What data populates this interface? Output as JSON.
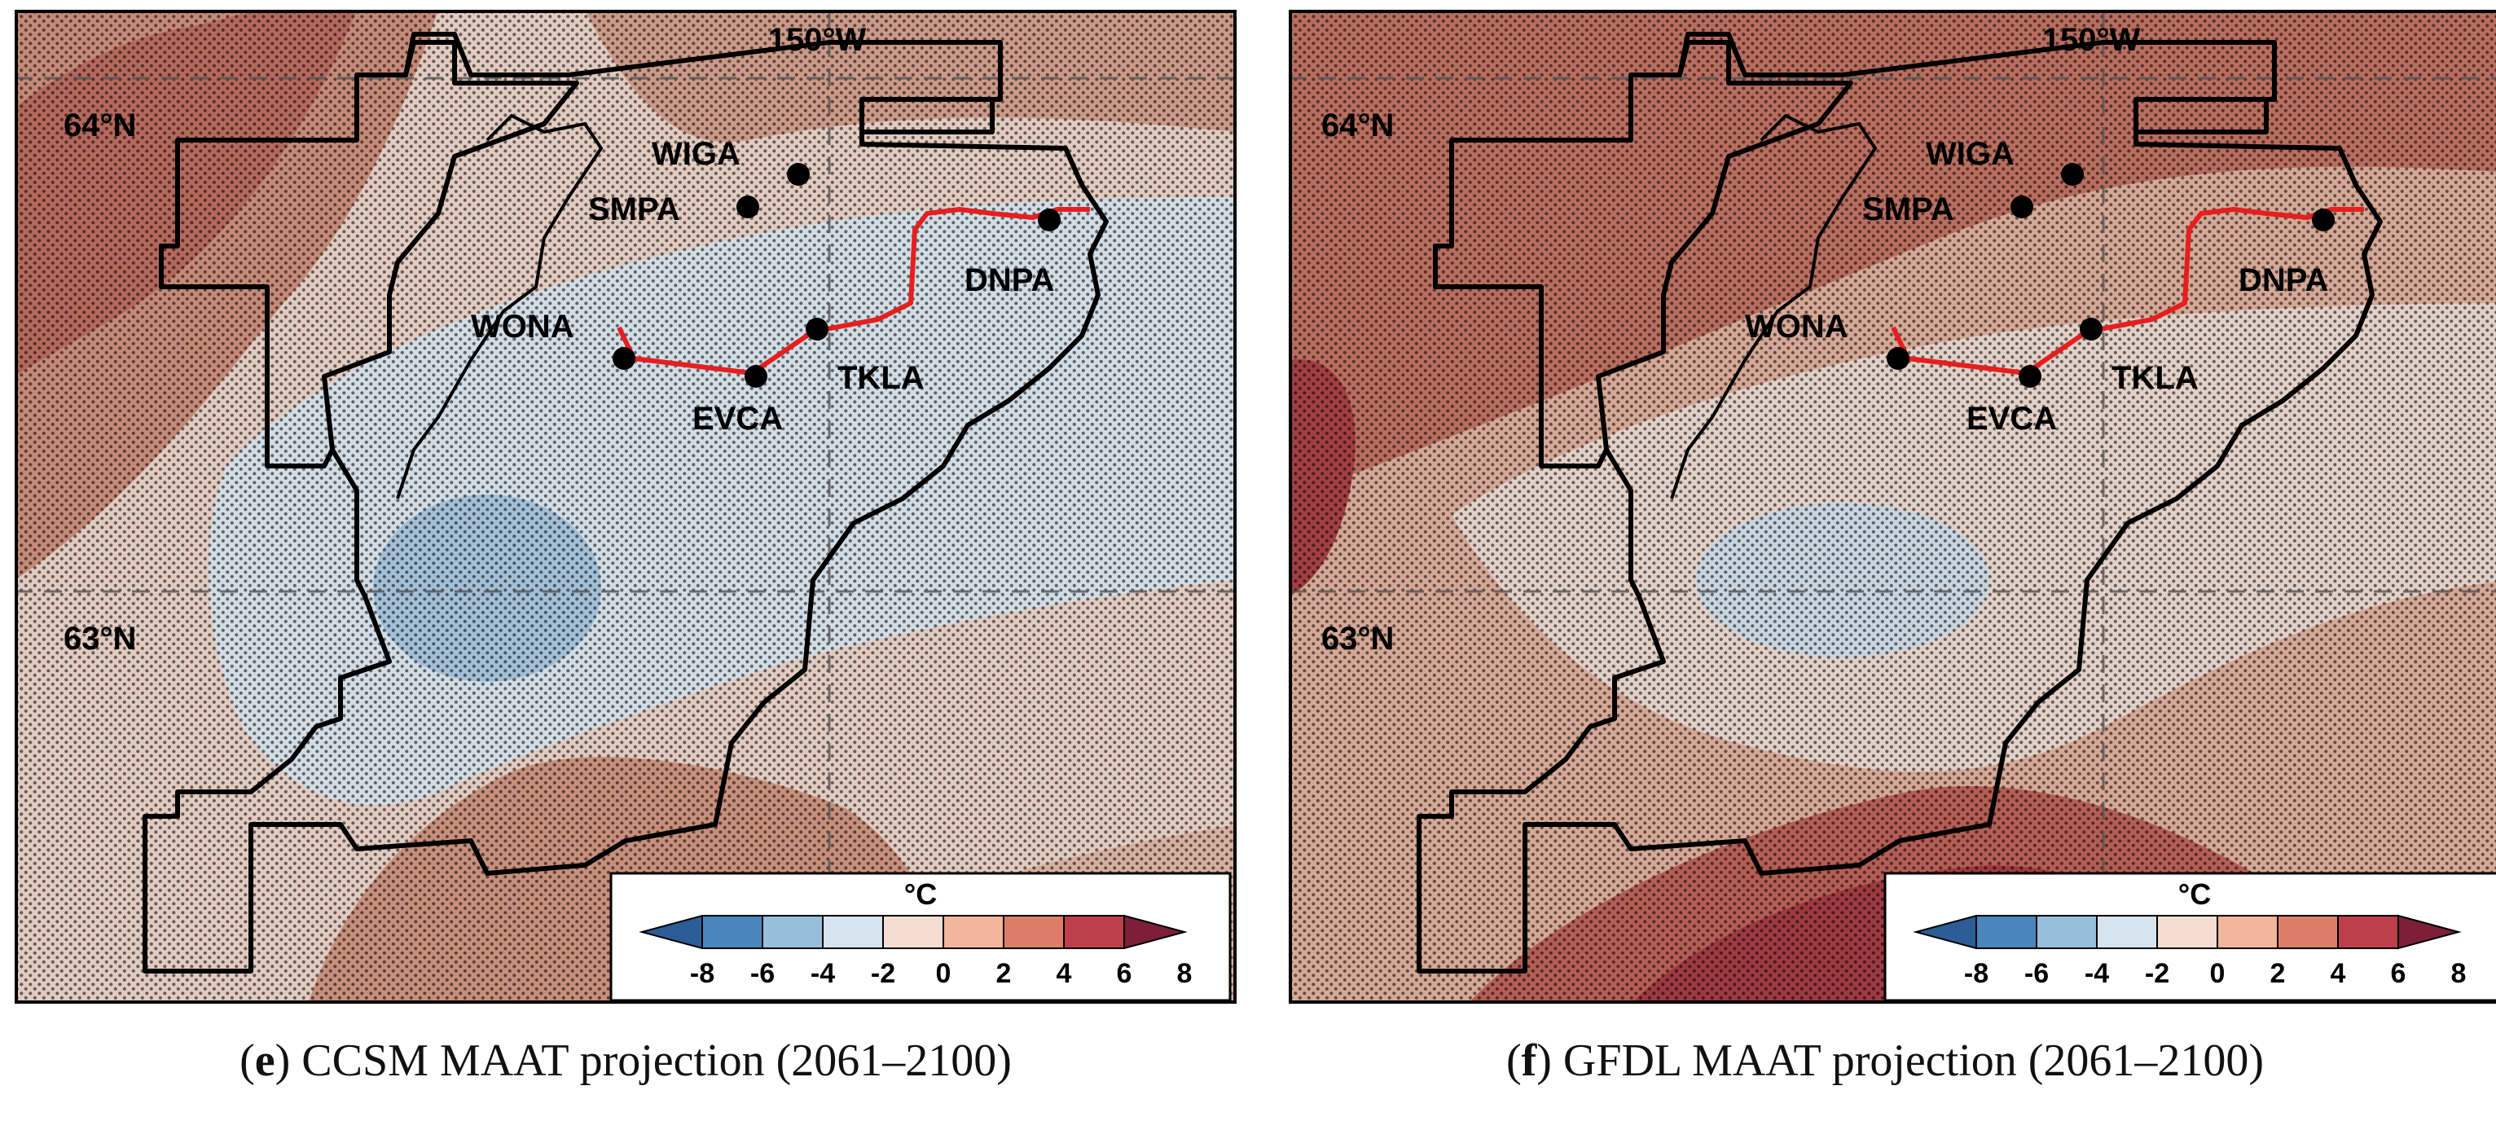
{
  "panels": [
    {
      "id": "e",
      "letter": "e",
      "caption": "CCSM MAAT projection (2061–2100)",
      "longitude_label": "150°W",
      "latitude_labels": [
        "64°N",
        "63°N"
      ],
      "stations": [
        "WIGA",
        "SMPA",
        "WONA",
        "EVCA",
        "TKLA",
        "DNPA"
      ]
    },
    {
      "id": "f",
      "letter": "f",
      "caption": "GFDL MAAT projection (2061–2100)",
      "longitude_label": "150°W",
      "latitude_labels": [
        "64°N",
        "63°N"
      ],
      "stations": [
        "WIGA",
        "SMPA",
        "WONA",
        "EVCA",
        "TKLA",
        "DNPA"
      ]
    }
  ],
  "colorbar": {
    "unit": "°C",
    "ticks": [
      "-8",
      "-6",
      "-4",
      "-2",
      "0",
      "2",
      "4",
      "6",
      "8"
    ],
    "colors": [
      "#2c5d97",
      "#4a86bd",
      "#97bfdc",
      "#d5e4ee",
      "#f5ddd2",
      "#f2b69d",
      "#db7d69",
      "#bd3f4b",
      "#7d1f38"
    ]
  },
  "colors": {
    "warm_strong": "#a94a44",
    "warm_mid": "#c88774",
    "warm_light": "#e6c3b5",
    "neutral": "#dfe3e6",
    "cool_light": "#c6d6e3",
    "cool_mid": "#96b8d4",
    "route": "#e61e1e",
    "boundary": "#000000"
  }
}
